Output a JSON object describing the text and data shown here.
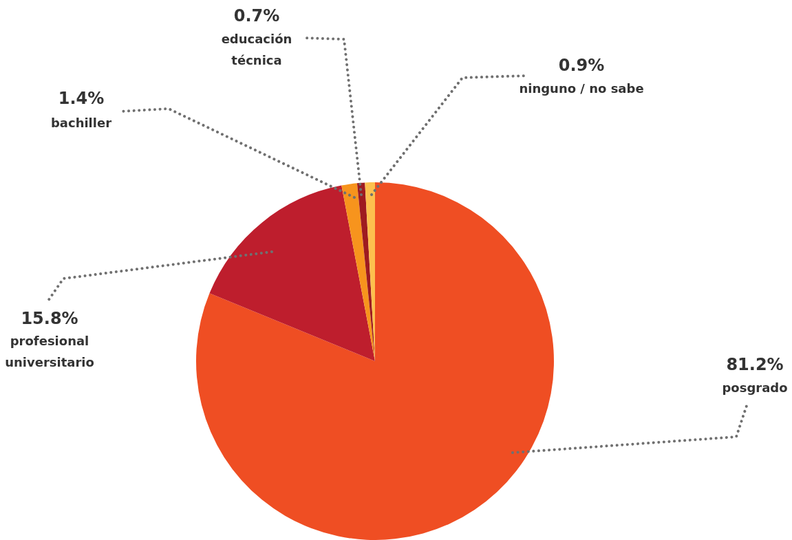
{
  "chart_data": {
    "type": "pie",
    "categories": [
      "posgrado",
      "profesional universitario",
      "bachiller",
      "educación técnica",
      "ninguno / no sabe"
    ],
    "values": [
      81.2,
      15.8,
      1.4,
      0.7,
      0.9
    ],
    "value_labels": [
      "81.2%",
      "15.8%",
      "1.4%",
      "0.7%",
      "0.9%"
    ],
    "colors": [
      "#ef4e23",
      "#be1e2d",
      "#f7941d",
      "#9e1b20",
      "#fdc04e"
    ],
    "legend": false
  }
}
